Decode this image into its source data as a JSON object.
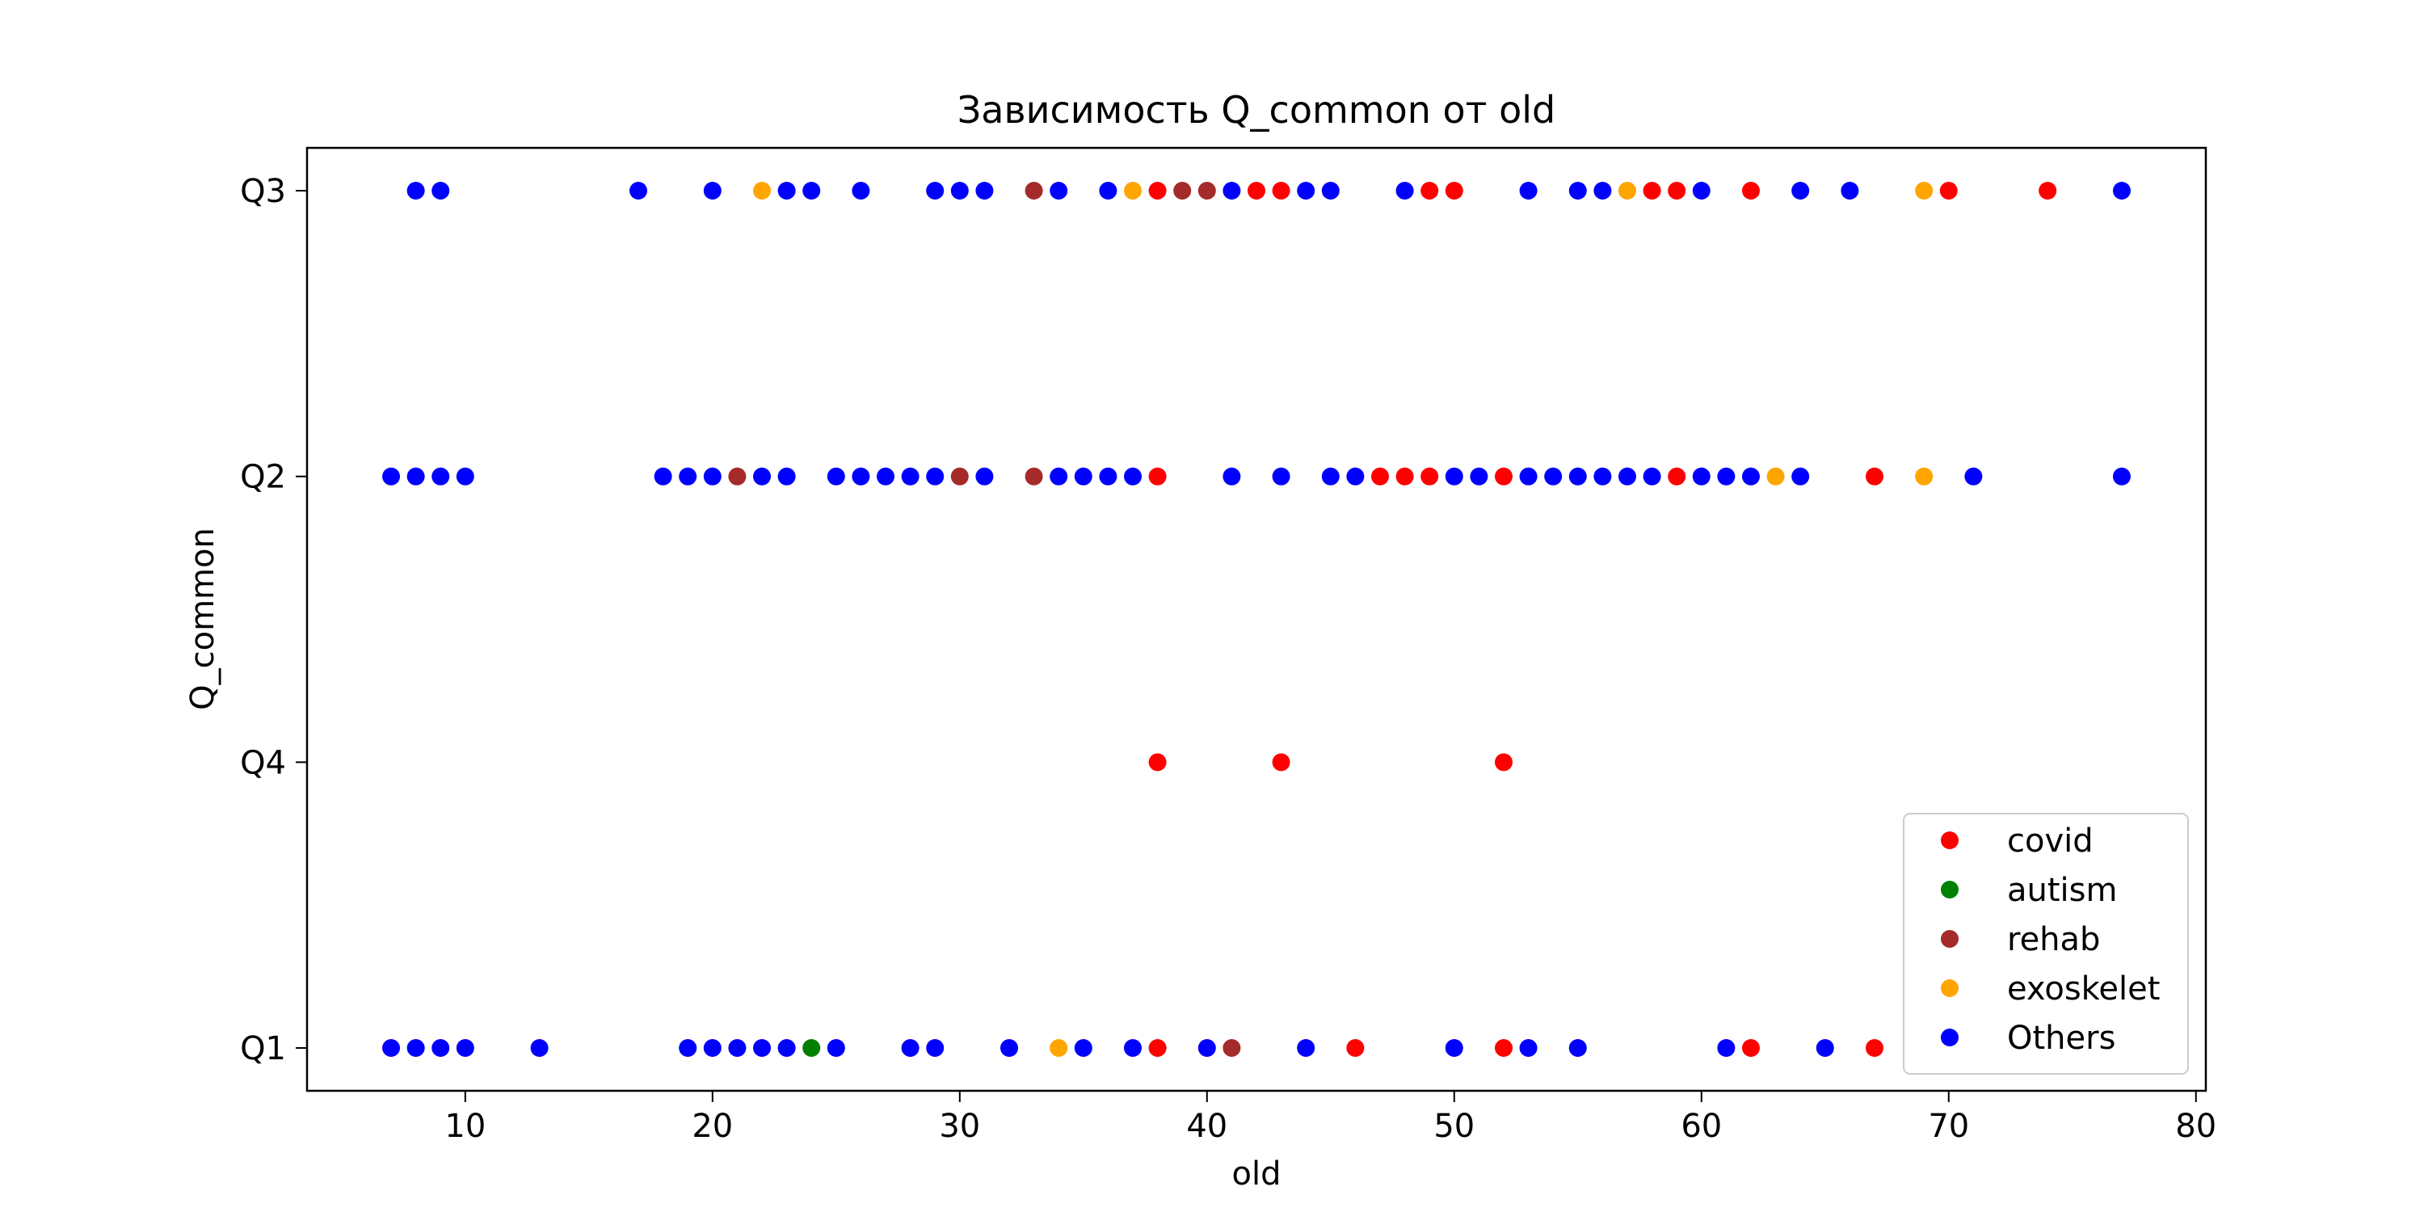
{
  "chart_data": {
    "type": "scatter",
    "title": "Зависимость Q_common от old",
    "xlabel": "old",
    "ylabel": "Q_common",
    "xlim": [
      3.6,
      80.4
    ],
    "xticks": [
      10,
      20,
      30,
      40,
      50,
      60,
      70,
      80
    ],
    "y_categories": [
      "Q1",
      "Q4",
      "Q2",
      "Q3"
    ],
    "grid": false,
    "legend_position": "lower right",
    "series": [
      {
        "name": "covid",
        "color": "#ff0000",
        "points": [
          {
            "x": 38,
            "y": "Q3"
          },
          {
            "x": 42,
            "y": "Q3"
          },
          {
            "x": 43,
            "y": "Q3"
          },
          {
            "x": 49,
            "y": "Q3"
          },
          {
            "x": 50,
            "y": "Q3"
          },
          {
            "x": 58,
            "y": "Q3"
          },
          {
            "x": 59,
            "y": "Q3"
          },
          {
            "x": 62,
            "y": "Q3"
          },
          {
            "x": 70,
            "y": "Q3"
          },
          {
            "x": 74,
            "y": "Q3"
          },
          {
            "x": 38,
            "y": "Q2"
          },
          {
            "x": 47,
            "y": "Q2"
          },
          {
            "x": 48,
            "y": "Q2"
          },
          {
            "x": 49,
            "y": "Q2"
          },
          {
            "x": 52,
            "y": "Q2"
          },
          {
            "x": 59,
            "y": "Q2"
          },
          {
            "x": 67,
            "y": "Q2"
          },
          {
            "x": 38,
            "y": "Q4"
          },
          {
            "x": 43,
            "y": "Q4"
          },
          {
            "x": 52,
            "y": "Q4"
          },
          {
            "x": 38,
            "y": "Q1"
          },
          {
            "x": 46,
            "y": "Q1"
          },
          {
            "x": 52,
            "y": "Q1"
          },
          {
            "x": 62,
            "y": "Q1"
          },
          {
            "x": 67,
            "y": "Q1"
          }
        ]
      },
      {
        "name": "autism",
        "color": "#008000",
        "points": [
          {
            "x": 24,
            "y": "Q1"
          }
        ]
      },
      {
        "name": "rehab",
        "color": "#a52a2a",
        "points": [
          {
            "x": 33,
            "y": "Q3"
          },
          {
            "x": 39,
            "y": "Q3"
          },
          {
            "x": 40,
            "y": "Q3"
          },
          {
            "x": 21,
            "y": "Q2"
          },
          {
            "x": 30,
            "y": "Q2"
          },
          {
            "x": 33,
            "y": "Q2"
          },
          {
            "x": 41,
            "y": "Q1"
          }
        ]
      },
      {
        "name": "exoskelet",
        "color": "#ffa500",
        "points": [
          {
            "x": 22,
            "y": "Q3"
          },
          {
            "x": 37,
            "y": "Q3"
          },
          {
            "x": 57,
            "y": "Q3"
          },
          {
            "x": 69,
            "y": "Q3"
          },
          {
            "x": 63,
            "y": "Q2"
          },
          {
            "x": 69,
            "y": "Q2"
          },
          {
            "x": 34,
            "y": "Q1"
          }
        ]
      },
      {
        "name": "Others",
        "color": "#0000ff",
        "points": [
          {
            "x": 8,
            "y": "Q3"
          },
          {
            "x": 9,
            "y": "Q3"
          },
          {
            "x": 17,
            "y": "Q3"
          },
          {
            "x": 20,
            "y": "Q3"
          },
          {
            "x": 23,
            "y": "Q3"
          },
          {
            "x": 24,
            "y": "Q3"
          },
          {
            "x": 26,
            "y": "Q3"
          },
          {
            "x": 29,
            "y": "Q3"
          },
          {
            "x": 30,
            "y": "Q3"
          },
          {
            "x": 31,
            "y": "Q3"
          },
          {
            "x": 34,
            "y": "Q3"
          },
          {
            "x": 36,
            "y": "Q3"
          },
          {
            "x": 41,
            "y": "Q3"
          },
          {
            "x": 44,
            "y": "Q3"
          },
          {
            "x": 45,
            "y": "Q3"
          },
          {
            "x": 48,
            "y": "Q3"
          },
          {
            "x": 53,
            "y": "Q3"
          },
          {
            "x": 55,
            "y": "Q3"
          },
          {
            "x": 56,
            "y": "Q3"
          },
          {
            "x": 60,
            "y": "Q3"
          },
          {
            "x": 64,
            "y": "Q3"
          },
          {
            "x": 66,
            "y": "Q3"
          },
          {
            "x": 77,
            "y": "Q3"
          },
          {
            "x": 7,
            "y": "Q2"
          },
          {
            "x": 8,
            "y": "Q2"
          },
          {
            "x": 9,
            "y": "Q2"
          },
          {
            "x": 10,
            "y": "Q2"
          },
          {
            "x": 18,
            "y": "Q2"
          },
          {
            "x": 19,
            "y": "Q2"
          },
          {
            "x": 20,
            "y": "Q2"
          },
          {
            "x": 22,
            "y": "Q2"
          },
          {
            "x": 23,
            "y": "Q2"
          },
          {
            "x": 25,
            "y": "Q2"
          },
          {
            "x": 26,
            "y": "Q2"
          },
          {
            "x": 27,
            "y": "Q2"
          },
          {
            "x": 28,
            "y": "Q2"
          },
          {
            "x": 29,
            "y": "Q2"
          },
          {
            "x": 31,
            "y": "Q2"
          },
          {
            "x": 34,
            "y": "Q2"
          },
          {
            "x": 35,
            "y": "Q2"
          },
          {
            "x": 36,
            "y": "Q2"
          },
          {
            "x": 37,
            "y": "Q2"
          },
          {
            "x": 41,
            "y": "Q2"
          },
          {
            "x": 43,
            "y": "Q2"
          },
          {
            "x": 45,
            "y": "Q2"
          },
          {
            "x": 46,
            "y": "Q2"
          },
          {
            "x": 50,
            "y": "Q2"
          },
          {
            "x": 51,
            "y": "Q2"
          },
          {
            "x": 53,
            "y": "Q2"
          },
          {
            "x": 54,
            "y": "Q2"
          },
          {
            "x": 55,
            "y": "Q2"
          },
          {
            "x": 56,
            "y": "Q2"
          },
          {
            "x": 57,
            "y": "Q2"
          },
          {
            "x": 58,
            "y": "Q2"
          },
          {
            "x": 60,
            "y": "Q2"
          },
          {
            "x": 61,
            "y": "Q2"
          },
          {
            "x": 62,
            "y": "Q2"
          },
          {
            "x": 64,
            "y": "Q2"
          },
          {
            "x": 71,
            "y": "Q2"
          },
          {
            "x": 77,
            "y": "Q2"
          },
          {
            "x": 7,
            "y": "Q1"
          },
          {
            "x": 8,
            "y": "Q1"
          },
          {
            "x": 9,
            "y": "Q1"
          },
          {
            "x": 10,
            "y": "Q1"
          },
          {
            "x": 13,
            "y": "Q1"
          },
          {
            "x": 19,
            "y": "Q1"
          },
          {
            "x": 20,
            "y": "Q1"
          },
          {
            "x": 21,
            "y": "Q1"
          },
          {
            "x": 22,
            "y": "Q1"
          },
          {
            "x": 23,
            "y": "Q1"
          },
          {
            "x": 25,
            "y": "Q1"
          },
          {
            "x": 28,
            "y": "Q1"
          },
          {
            "x": 29,
            "y": "Q1"
          },
          {
            "x": 32,
            "y": "Q1"
          },
          {
            "x": 35,
            "y": "Q1"
          },
          {
            "x": 37,
            "y": "Q1"
          },
          {
            "x": 40,
            "y": "Q1"
          },
          {
            "x": 44,
            "y": "Q1"
          },
          {
            "x": 50,
            "y": "Q1"
          },
          {
            "x": 53,
            "y": "Q1"
          },
          {
            "x": 55,
            "y": "Q1"
          },
          {
            "x": 61,
            "y": "Q1"
          },
          {
            "x": 65,
            "y": "Q1"
          }
        ]
      }
    ]
  }
}
